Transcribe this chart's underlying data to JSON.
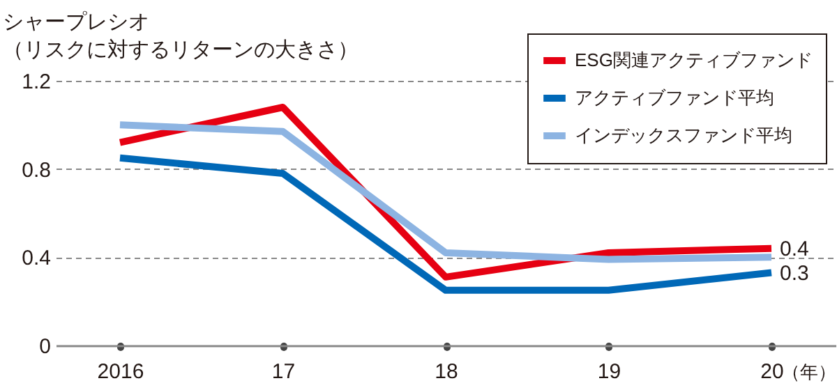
{
  "chart_data": {
    "type": "line",
    "ylabel": "シャープレシオ（リスクに対するリターンの大きさ）",
    "xlabel": "（年）",
    "categories": [
      "2016",
      "17",
      "18",
      "19",
      "20"
    ],
    "ylim": [
      0,
      1.2
    ],
    "yticks": [
      0,
      0.4,
      0.8,
      1.2
    ],
    "grid": "y",
    "legend": "top right",
    "series": [
      {
        "name": "ESG関連アクティブファンド",
        "color": "#e60012",
        "values": [
          0.92,
          1.08,
          0.31,
          0.42,
          0.44
        ],
        "value_labels": [
          null,
          null,
          null,
          null,
          "0.4"
        ]
      },
      {
        "name": "アクティブファンド平均",
        "color": "#0068b7",
        "values": [
          0.85,
          0.78,
          0.25,
          0.25,
          0.33
        ],
        "value_labels": [
          null,
          null,
          null,
          null,
          "0.3"
        ]
      },
      {
        "name": "インデックスファンド平均",
        "color": "#8db4e2",
        "values": [
          1.0,
          0.97,
          0.42,
          0.39,
          0.4
        ]
      }
    ]
  }
}
